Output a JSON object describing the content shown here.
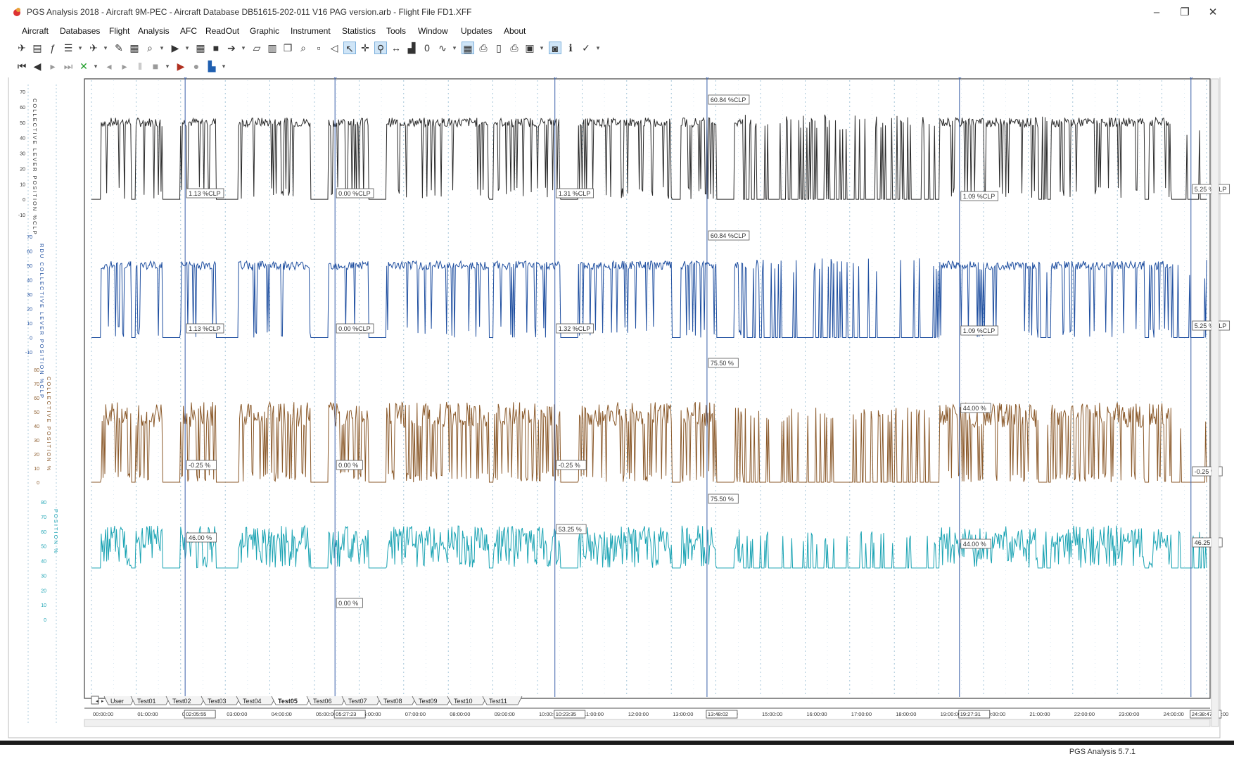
{
  "window": {
    "title": "PGS Analysis 2018 - Aircraft 9M-PEC - Aircraft Database DB51615-202-011 V16 PAG version.arb - Flight File FD1.XFF",
    "minimize": "–",
    "restore": "❐",
    "close": "✕"
  },
  "menu": [
    "Aircraft",
    "Databases",
    "Flight",
    "Analysis",
    "AFC",
    "ReadOut",
    "Graphic",
    "Instrument",
    "Statistics",
    "Tools",
    "Window",
    "Updates",
    "About"
  ],
  "toolbar1": [
    {
      "icon": "aircraft-icon",
      "glyph": "✈"
    },
    {
      "icon": "database-icon",
      "glyph": "▤"
    },
    {
      "icon": "formula-icon",
      "glyph": "ƒ"
    },
    {
      "icon": "list-icon",
      "glyph": "☰"
    },
    {
      "icon": "dropdown-icon",
      "glyph": "▾"
    },
    {
      "icon": "flight-icon",
      "glyph": "✈"
    },
    {
      "icon": "dropdown-icon",
      "glyph": "▾"
    },
    {
      "icon": "pen-icon",
      "glyph": "✎"
    },
    {
      "icon": "report-icon",
      "glyph": "▦"
    },
    {
      "icon": "magnifier-doc-icon",
      "glyph": "⌕"
    },
    {
      "icon": "dropdown-icon",
      "glyph": "▾"
    },
    {
      "icon": "marker-icon",
      "glyph": "▶"
    },
    {
      "icon": "dropdown-icon",
      "glyph": "▾"
    },
    {
      "icon": "grid-icon",
      "glyph": "▦"
    },
    {
      "icon": "video-icon",
      "glyph": "■"
    },
    {
      "icon": "arrow-icon",
      "glyph": "➔"
    },
    {
      "icon": "dropdown-icon",
      "glyph": "▾"
    },
    {
      "icon": "open-folder-icon",
      "glyph": "▱"
    },
    {
      "icon": "spreadsheet-icon",
      "glyph": "▥"
    },
    {
      "icon": "copy-icon",
      "glyph": "❐"
    },
    {
      "icon": "binoculars-icon",
      "glyph": "⌕"
    },
    {
      "icon": "disabled-icon",
      "glyph": "▫"
    },
    {
      "icon": "speaker-icon",
      "glyph": "◁"
    },
    {
      "icon": "cursor-icon",
      "glyph": "↖",
      "on": true
    },
    {
      "icon": "crosshair-icon",
      "glyph": "✛"
    },
    {
      "icon": "zoom-icon",
      "glyph": "⚲",
      "on": true
    },
    {
      "icon": "measure-icon",
      "glyph": "↔"
    },
    {
      "icon": "bar-icon",
      "glyph": "▟"
    },
    {
      "icon": "digit-icon",
      "glyph": "0"
    },
    {
      "icon": "curve-icon",
      "glyph": "∿"
    },
    {
      "icon": "dropdown-icon",
      "glyph": "▾"
    },
    {
      "icon": "grid-toggle-icon",
      "glyph": "▦",
      "on": true
    },
    {
      "icon": "print-icon",
      "glyph": "⎙"
    },
    {
      "icon": "preview-icon",
      "glyph": "▯"
    },
    {
      "icon": "print-setup-icon",
      "glyph": "⎙"
    },
    {
      "icon": "layout-icon",
      "glyph": "▣"
    },
    {
      "icon": "dropdown-icon",
      "glyph": "▾"
    },
    {
      "icon": "camera-icon",
      "glyph": "◙",
      "on": true
    },
    {
      "icon": "info-icon",
      "glyph": "ℹ"
    },
    {
      "icon": "check-icon",
      "glyph": "✓"
    },
    {
      "icon": "dropdown-icon",
      "glyph": "▾"
    }
  ],
  "toolbar2": [
    {
      "icon": "first-icon",
      "glyph": "⏮"
    },
    {
      "icon": "previous-icon",
      "glyph": "◀"
    },
    {
      "icon": "next-icon",
      "glyph": "▸",
      "gray": true
    },
    {
      "icon": "last-icon",
      "glyph": "⏭",
      "gray": true
    },
    {
      "icon": "delete-icon",
      "glyph": "✕",
      "green": true
    },
    {
      "icon": "dropdown-icon",
      "glyph": "▾"
    },
    {
      "icon": "step-back-icon",
      "glyph": "◂",
      "gray": true
    },
    {
      "icon": "step-forward-icon",
      "glyph": "▸",
      "gray": true
    },
    {
      "icon": "pause-icon",
      "glyph": "‖",
      "gray": true
    },
    {
      "icon": "stop-icon",
      "glyph": "■",
      "gray": true
    },
    {
      "icon": "dropdown-icon",
      "glyph": "▾"
    },
    {
      "icon": "play-icon",
      "glyph": "▶",
      "red": true
    },
    {
      "icon": "record-icon",
      "glyph": "●",
      "gray": true
    },
    {
      "icon": "chart-type-icon",
      "glyph": "▙",
      "blue": true
    },
    {
      "icon": "dropdown-icon",
      "glyph": "▾"
    }
  ],
  "axis_labels": [
    {
      "title": "COLLECTIVE LEVER POSITION %CLP",
      "ticks": [
        "70",
        "60",
        "50",
        "40",
        "30",
        "20",
        "10",
        "0",
        "-10"
      ],
      "color": "#333333"
    },
    {
      "title": "RDU COLLECTIVE LEVER POSITION %CLP",
      "ticks": [
        "70",
        "60",
        "50",
        "40",
        "30",
        "20",
        "10",
        "0",
        "-10"
      ],
      "color": "#1f4fa0"
    },
    {
      "title": "COLLECTIVE POSITION %",
      "ticks": [
        "80",
        "70",
        "60",
        "50",
        "40",
        "30",
        "20",
        "10",
        "0"
      ],
      "color": "#8b5a2b"
    },
    {
      "title": "POSITION %",
      "ticks": [
        "80",
        "70",
        "60",
        "50",
        "40",
        "30",
        "20",
        "10",
        "0"
      ],
      "color": "#1aa3b3"
    }
  ],
  "cursor_labels": [
    {
      "trace": 0,
      "label": "1.13 %CLP"
    },
    {
      "trace": 0,
      "label": "0.00 %CLP"
    },
    {
      "trace": 0,
      "label": "1.31 %CLP"
    },
    {
      "trace": 0,
      "label": "60.84 %CLP"
    },
    {
      "trace": 0,
      "label": "1.09 %CLP"
    },
    {
      "trace": 0,
      "label": "5.25 %CLP"
    },
    {
      "trace": 1,
      "label": "1.13 %CLP"
    },
    {
      "trace": 1,
      "label": "0.00 %CLP"
    },
    {
      "trace": 1,
      "label": "1.32 %CLP"
    },
    {
      "trace": 1,
      "label": "60.84 %CLP"
    },
    {
      "trace": 1,
      "label": "1.09 %CLP"
    },
    {
      "trace": 1,
      "label": "5.25 %CLP"
    },
    {
      "trace": 2,
      "label": "-0.25 %"
    },
    {
      "trace": 2,
      "label": "0.00 %"
    },
    {
      "trace": 2,
      "label": "-0.25 %"
    },
    {
      "trace": 2,
      "label": "75.50 %"
    },
    {
      "trace": 2,
      "label": "44.00 %"
    },
    {
      "trace": 2,
      "label": "-0.25 %"
    },
    {
      "trace": 3,
      "label": "46.00 %"
    },
    {
      "trace": 3,
      "label": "0.00 %"
    },
    {
      "trace": 3,
      "label": "53.25 %"
    },
    {
      "trace": 3,
      "label": "75.50 %"
    },
    {
      "trace": 3,
      "label": "44.00 %"
    },
    {
      "trace": 3,
      "label": "46.25 %"
    }
  ],
  "tabs": [
    "User",
    "Test01",
    "Test02",
    "Test03",
    "Test04",
    "Test05",
    "Test06",
    "Test07",
    "Test08",
    "Test09",
    "Test10",
    "Test11"
  ],
  "active_tab": "Test05",
  "time_axis": [
    "00:00:00",
    "01:00:00",
    "02:00:00",
    "03:00:00",
    "04:00:00",
    "05:00:00",
    "06:00:00",
    "07:00:00",
    "08:00:00",
    "09:00:00",
    "10:00:00",
    "11:00:00",
    "12:00:00",
    "13:00:00",
    "14:00:00",
    "15:00:00",
    "16:00:00",
    "17:00:00",
    "18:00:00",
    "19:00:00",
    "20:00:00",
    "21:00:00",
    "22:00:00",
    "23:00:00",
    "24:00:00",
    "25:00:00"
  ],
  "cursor_times": [
    "02:05:55",
    "05:27:23",
    "10:23:35",
    "13:48:02",
    "19:27:31",
    "24:38:47"
  ],
  "trace_colors": [
    "#2b2b2b",
    "#1f4fa0",
    "#8b5a2b",
    "#1aa3b3"
  ],
  "status": {
    "version": "PGS Analysis 5.7.1"
  }
}
